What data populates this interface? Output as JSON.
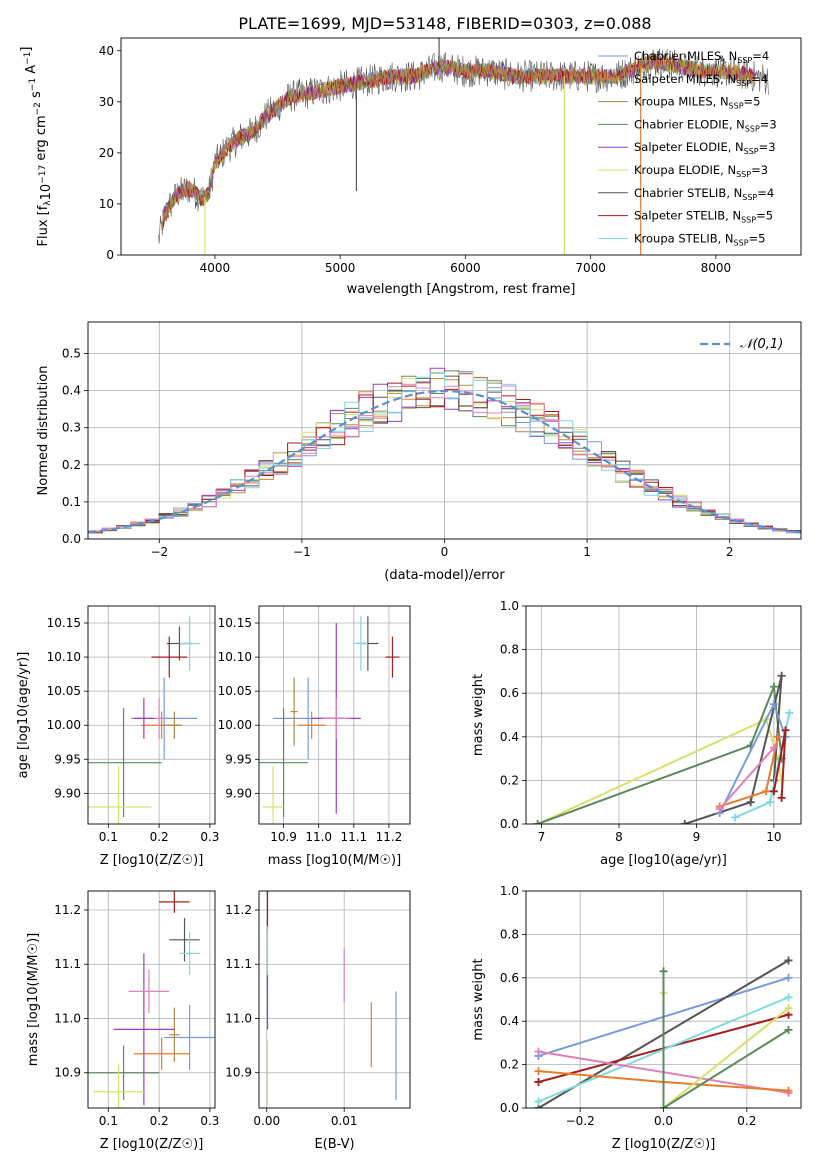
{
  "figure": {
    "title": "PLATE=1699, MJD=53148, FIBERID=0303, z=0.088"
  },
  "colors": {
    "chabrier_miles": "#7a9bd9",
    "salpeter_miles": "#e57d2e",
    "kroupa_miles": "#ad8a4a",
    "chabrier_elodie": "#5a8a5e",
    "salpeter_elodie": "#9a3fbf",
    "kroupa_elodie": "#d7e06a",
    "chabrier_stelib": "#555555",
    "salpeter_stelib": "#a51d1d",
    "kroupa_stelib": "#7fd9e0",
    "pink": "#e080b8",
    "normal": "#5b8fd4"
  },
  "models": [
    {
      "key": "chabrier_miles",
      "label": "Chabrier MILES, N",
      "nssp": "4"
    },
    {
      "key": "salpeter_miles",
      "label": "Salpeter MILES, N",
      "nssp": "4"
    },
    {
      "key": "kroupa_miles",
      "label": "Kroupa MILES, N",
      "nssp": "5"
    },
    {
      "key": "chabrier_elodie",
      "label": "Chabrier ELODIE, N",
      "nssp": "3"
    },
    {
      "key": "salpeter_elodie",
      "label": "Salpeter ELODIE, N",
      "nssp": "3"
    },
    {
      "key": "kroupa_elodie",
      "label": "Kroupa ELODIE, N",
      "nssp": "3"
    },
    {
      "key": "chabrier_stelib",
      "label": "Chabrier STELIB, N",
      "nssp": "4"
    },
    {
      "key": "salpeter_stelib",
      "label": "Salpeter STELIB, N",
      "nssp": "5"
    },
    {
      "key": "kroupa_stelib",
      "label": "Kroupa STELIB, N",
      "nssp": "5"
    }
  ],
  "chart_data": [
    {
      "id": "spectrum",
      "type": "line",
      "xlabel": "wavelength [Angstrom, rest frame]",
      "ylabel": "Flux [f_λ 10^-17 erg cm^-2 s^-1 A^-1]",
      "xlim": [
        3250,
        8680
      ],
      "ylim": [
        0,
        42.5
      ],
      "xticks": [
        4000,
        5000,
        6000,
        7000,
        8000
      ],
      "yticks": [
        0,
        10,
        20,
        30,
        40
      ],
      "continuum": [
        [
          3550,
          3
        ],
        [
          3600,
          8
        ],
        [
          3700,
          12
        ],
        [
          3800,
          13
        ],
        [
          3900,
          11
        ],
        [
          3950,
          12
        ],
        [
          4000,
          18
        ],
        [
          4100,
          21
        ],
        [
          4200,
          23
        ],
        [
          4300,
          24
        ],
        [
          4400,
          27
        ],
        [
          4500,
          29
        ],
        [
          4600,
          31
        ],
        [
          4800,
          32
        ],
        [
          5000,
          33
        ],
        [
          5200,
          34
        ],
        [
          5400,
          35
        ],
        [
          5600,
          35
        ],
        [
          5800,
          37
        ],
        [
          6000,
          36
        ],
        [
          6200,
          36
        ],
        [
          6400,
          35
        ],
        [
          6600,
          35
        ],
        [
          6800,
          35
        ],
        [
          7000,
          35
        ],
        [
          7200,
          35
        ],
        [
          7400,
          37
        ],
        [
          7500,
          38
        ],
        [
          7700,
          37
        ],
        [
          7900,
          36
        ],
        [
          8100,
          36
        ],
        [
          8300,
          35
        ],
        [
          8500,
          34
        ]
      ],
      "spikes": [
        [
          5130,
          12.5
        ],
        [
          5790,
          42.5
        ],
        [
          3920,
          0
        ],
        [
          6790,
          0
        ],
        [
          7400,
          0
        ]
      ],
      "legend": "upper right"
    },
    {
      "id": "residuals",
      "type": "histogram",
      "xlabel": "(data-model)/error",
      "ylabel": "Normed distribution",
      "xlim": [
        -2.5,
        2.5
      ],
      "ylim": [
        0,
        0.585
      ],
      "xticks": [
        -2,
        -1,
        0,
        1,
        2
      ],
      "yticks": [
        0.0,
        0.1,
        0.2,
        0.3,
        0.4,
        0.5
      ],
      "legend": "𝒩(0,1)",
      "bin_width": 0.1
    },
    {
      "id": "age_vs_Z",
      "type": "scatter",
      "xlabel": "Z [log10(Z/Z☉)]",
      "ylabel": "age [log10(age/yr)]",
      "xlim": [
        0.06,
        0.31
      ],
      "ylim": [
        9.855,
        10.175
      ],
      "xticks": [
        0.1,
        0.2,
        0.3
      ],
      "yticks": [
        9.9,
        9.95,
        10.0,
        10.05,
        10.1,
        10.15
      ],
      "points": [
        {
          "c": "chabrier_miles",
          "x": 0.21,
          "y": 10.01,
          "ex": 0.065,
          "ey": 0.06
        },
        {
          "c": "salpeter_miles",
          "x": 0.205,
          "y": 10.0,
          "ex": 0.04,
          "ey": 0.02
        },
        {
          "c": "kroupa_miles",
          "x": 0.23,
          "y": 10.0,
          "ex": 0.015,
          "ey": 0.02
        },
        {
          "c": "chabrier_elodie",
          "x": 0.13,
          "y": 9.945,
          "ex": 0.075,
          "ey": 0.08
        },
        {
          "c": "salpeter_elodie",
          "x": 0.17,
          "y": 10.01,
          "ex": 0.02,
          "ey": 0.03
        },
        {
          "c": "kroupa_elodie",
          "x": 0.12,
          "y": 9.88,
          "ex": 0.065,
          "ey": 0.06
        },
        {
          "c": "chabrier_stelib",
          "x": 0.24,
          "y": 10.12,
          "ex": 0.025,
          "ey": 0.025
        },
        {
          "c": "salpeter_stelib",
          "x": 0.22,
          "y": 10.1,
          "ex": 0.035,
          "ey": 0.03
        },
        {
          "c": "kroupa_stelib",
          "x": 0.26,
          "y": 10.12,
          "ex": 0.02,
          "ey": 0.04
        },
        {
          "c": "pink",
          "x": 0.2,
          "y": 10.01,
          "ex": 0.01,
          "ey": 0.03
        }
      ]
    },
    {
      "id": "age_vs_mass",
      "type": "scatter",
      "xlabel": "mass [log10(M/M☉)]",
      "ylabel": "",
      "xlim": [
        10.83,
        11.26
      ],
      "ylim": [
        9.855,
        10.175
      ],
      "xticks": [
        10.9,
        11.0,
        11.1,
        11.2
      ],
      "yticks": [
        9.9,
        9.95,
        10.0,
        10.05,
        10.1,
        10.15
      ],
      "points": [
        {
          "c": "chabrier_miles",
          "x": 10.97,
          "y": 10.01,
          "ex": 0.1,
          "ey": 0.06
        },
        {
          "c": "salpeter_miles",
          "x": 10.98,
          "y": 10.0,
          "ex": 0.04,
          "ey": 0.02
        },
        {
          "c": "kroupa_miles",
          "x": 10.93,
          "y": 10.02,
          "ex": 0.01,
          "ey": 0.05
        },
        {
          "c": "chabrier_elodie",
          "x": 10.9,
          "y": 9.945,
          "ex": 0.07,
          "ey": 0.08
        },
        {
          "c": "salpeter_elodie",
          "x": 11.05,
          "y": 10.01,
          "ex": 0.07,
          "ey": 0.14
        },
        {
          "c": "kroupa_elodie",
          "x": 10.87,
          "y": 9.88,
          "ex": 0.03,
          "ey": 0.06
        },
        {
          "c": "chabrier_stelib",
          "x": 11.14,
          "y": 10.12,
          "ex": 0.03,
          "ey": 0.04
        },
        {
          "c": "salpeter_stelib",
          "x": 11.21,
          "y": 10.1,
          "ex": 0.02,
          "ey": 0.03
        },
        {
          "c": "kroupa_stelib",
          "x": 11.12,
          "y": 10.12,
          "ex": 0.02,
          "ey": 0.04
        },
        {
          "c": "pink",
          "x": 11.05,
          "y": 10.01,
          "ex": 0.04,
          "ey": 0.03
        }
      ]
    },
    {
      "id": "weight_vs_age",
      "type": "line",
      "xlabel": "age [log10(age/yr)]",
      "ylabel": "mass weight",
      "xlim": [
        6.8,
        10.35
      ],
      "ylim": [
        0.0,
        1.0
      ],
      "xticks": [
        7,
        8,
        9,
        10
      ],
      "yticks": [
        0.0,
        0.2,
        0.4,
        0.6,
        0.8,
        1.0
      ],
      "series": [
        {
          "c": "kroupa_elodie",
          "pts": [
            [
              6.95,
              0.0
            ],
            [
              9.9,
              0.48
            ],
            [
              10.05,
              0.3
            ],
            [
              10.1,
              0.2
            ]
          ]
        },
        {
          "c": "chabrier_elodie",
          "pts": [
            [
              6.95,
              0.0
            ],
            [
              9.7,
              0.36
            ],
            [
              10.0,
              0.63
            ],
            [
              10.1,
              0.3
            ]
          ]
        },
        {
          "c": "chabrier_stelib",
          "pts": [
            [
              8.85,
              0.0
            ],
            [
              9.7,
              0.1
            ],
            [
              10.1,
              0.68
            ],
            [
              10.0,
              0.2
            ]
          ]
        },
        {
          "c": "chabrier_miles",
          "pts": [
            [
              9.3,
              0.05
            ],
            [
              10.0,
              0.55
            ],
            [
              10.15,
              0.4
            ]
          ]
        },
        {
          "c": "salpeter_miles",
          "pts": [
            [
              9.3,
              0.08
            ],
            [
              9.9,
              0.15
            ],
            [
              10.05,
              0.4
            ]
          ]
        },
        {
          "c": "kroupa_stelib",
          "pts": [
            [
              9.5,
              0.03
            ],
            [
              9.95,
              0.1
            ],
            [
              10.2,
              0.51
            ]
          ]
        },
        {
          "c": "pink",
          "pts": [
            [
              9.3,
              0.07
            ],
            [
              10.0,
              0.35
            ]
          ]
        },
        {
          "c": "salpeter_stelib",
          "pts": [
            [
              10.0,
              0.15
            ],
            [
              10.15,
              0.43
            ],
            [
              10.1,
              0.12
            ]
          ]
        }
      ]
    },
    {
      "id": "mass_vs_Z",
      "type": "scatter",
      "xlabel": "Z [log10(Z/Z☉)]",
      "ylabel": "mass [log10(M/M☉)]",
      "xlim": [
        0.06,
        0.31
      ],
      "ylim": [
        10.835,
        11.235
      ],
      "xticks": [
        0.1,
        0.2,
        0.3
      ],
      "yticks": [
        10.9,
        11.0,
        11.1,
        11.2
      ],
      "points": [
        {
          "c": "chabrier_miles",
          "x": 0.26,
          "y": 10.965,
          "ex": 0.05,
          "ey": 0.06
        },
        {
          "c": "salpeter_miles",
          "x": 0.205,
          "y": 10.935,
          "ex": 0.055,
          "ey": 0.03
        },
        {
          "c": "kroupa_miles",
          "x": 0.23,
          "y": 10.97,
          "ex": 0.01,
          "ey": 0.05
        },
        {
          "c": "chabrier_elodie",
          "x": 0.13,
          "y": 10.9,
          "ex": 0.07,
          "ey": 0.05
        },
        {
          "c": "salpeter_elodie",
          "x": 0.17,
          "y": 10.98,
          "ex": 0.06,
          "ey": 0.14
        },
        {
          "c": "kroupa_elodie",
          "x": 0.12,
          "y": 10.865,
          "ex": 0.05,
          "ey": 0.05
        },
        {
          "c": "chabrier_stelib",
          "x": 0.25,
          "y": 11.145,
          "ex": 0.03,
          "ey": 0.04
        },
        {
          "c": "salpeter_stelib",
          "x": 0.23,
          "y": 11.215,
          "ex": 0.03,
          "ey": 0.02
        },
        {
          "c": "kroupa_stelib",
          "x": 0.26,
          "y": 11.12,
          "ex": 0.02,
          "ey": 0.04
        },
        {
          "c": "pink",
          "x": 0.18,
          "y": 11.05,
          "ex": 0.04,
          "ey": 0.04
        }
      ]
    },
    {
      "id": "mass_vs_ebv",
      "type": "scatter",
      "xlabel": "E(B-V)",
      "ylabel": "",
      "xlim": [
        -0.001,
        0.0185
      ],
      "ylim": [
        10.835,
        11.235
      ],
      "xticks": [
        0.0,
        0.01
      ],
      "yticks": [
        10.9,
        11.0,
        11.1,
        11.2
      ],
      "points": [
        {
          "c": "chabrier_miles",
          "x": 0.0167,
          "y": 10.95,
          "ex": 0,
          "ey": 0.1
        },
        {
          "c": "salpeter_miles",
          "x": 0.0135,
          "y": 10.97,
          "ex": 0,
          "ey": 0.06
        },
        {
          "c": "pink",
          "x": 0.01,
          "y": 11.08,
          "ex": 0,
          "ey": 0.05
        },
        {
          "c": "salpeter_stelib",
          "x": 0.0001,
          "y": 11.2,
          "ex": 0,
          "ey": 0.04
        },
        {
          "c": "kroupa_stelib",
          "x": 0.0001,
          "y": 11.12,
          "ex": 0,
          "ey": 0.05
        },
        {
          "c": "salpeter_elodie",
          "x": 0.0001,
          "y": 11.03,
          "ex": 0,
          "ey": 0.05
        },
        {
          "c": "kroupa_elodie",
          "x": 0.0001,
          "y": 10.9,
          "ex": 0,
          "ey": 0.06
        }
      ]
    },
    {
      "id": "weight_vs_Z",
      "type": "line",
      "xlabel": "Z [log10(Z/Z☉)]",
      "ylabel": "mass weight",
      "xlim": [
        -0.33,
        0.33
      ],
      "ylim": [
        0.0,
        1.0
      ],
      "xticks": [
        -0.2,
        0.0,
        0.2
      ],
      "yticks": [
        0.0,
        0.2,
        0.4,
        0.6,
        0.8,
        1.0
      ],
      "series": [
        {
          "c": "chabrier_miles",
          "pts": [
            [
              -0.3,
              0.24
            ],
            [
              0.3,
              0.6
            ]
          ]
        },
        {
          "c": "chabrier_stelib",
          "pts": [
            [
              -0.3,
              0.0
            ],
            [
              0.3,
              0.68
            ]
          ]
        },
        {
          "c": "salpeter_stelib",
          "pts": [
            [
              -0.3,
              0.12
            ],
            [
              0.3,
              0.43
            ]
          ]
        },
        {
          "c": "kroupa_stelib",
          "pts": [
            [
              -0.3,
              0.03
            ],
            [
              0.3,
              0.51
            ]
          ]
        },
        {
          "c": "pink",
          "pts": [
            [
              -0.3,
              0.26
            ],
            [
              0.3,
              0.07
            ]
          ]
        },
        {
          "c": "salpeter_miles",
          "pts": [
            [
              -0.3,
              0.17
            ],
            [
              0.0,
              0.12
            ],
            [
              0.3,
              0.08
            ]
          ]
        },
        {
          "c": "kroupa_elodie",
          "pts": [
            [
              0.0,
              0.53
            ],
            [
              0.0,
              0.0
            ],
            [
              0.3,
              0.46
            ]
          ]
        },
        {
          "c": "chabrier_elodie",
          "pts": [
            [
              0.0,
              0.63
            ],
            [
              0.0,
              0.0
            ],
            [
              0.3,
              0.36
            ]
          ]
        }
      ]
    }
  ]
}
